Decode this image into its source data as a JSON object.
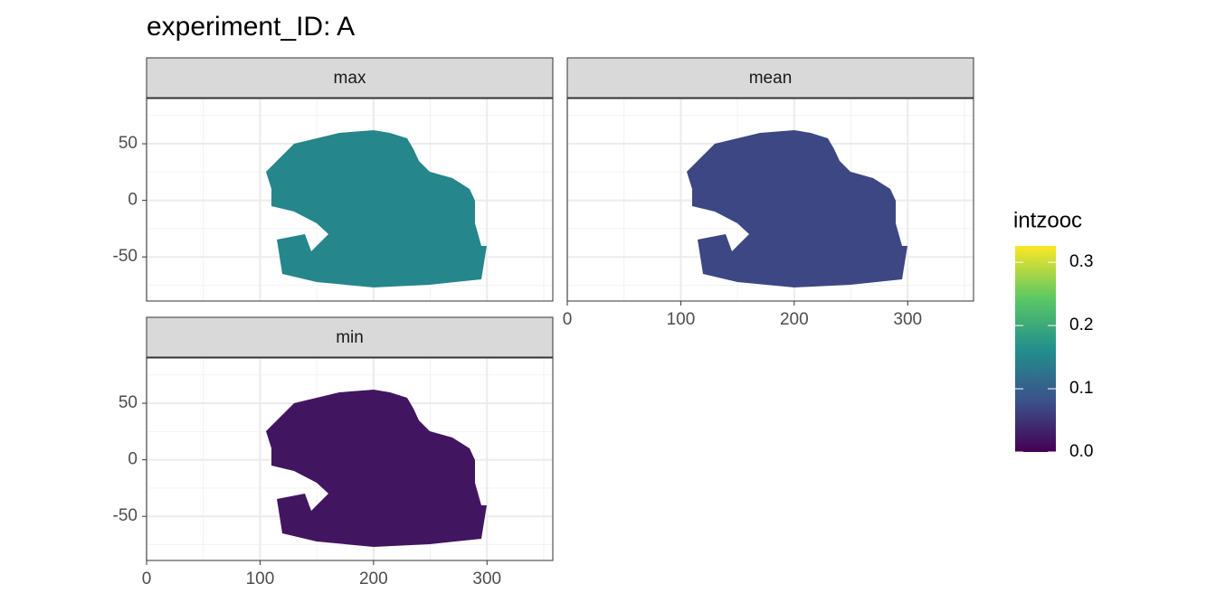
{
  "chart_data": {
    "type": "raster",
    "title": "experiment_ID: A",
    "facets": [
      {
        "name": "max",
        "fill_value": 0.15
      },
      {
        "name": "mean",
        "fill_value": 0.07
      },
      {
        "name": "min",
        "fill_value": 0.02
      }
    ],
    "xlim": [
      0,
      358
    ],
    "xticks": [
      0,
      100,
      200,
      300
    ],
    "ylim": [
      -89,
      90
    ],
    "yticks": [
      -50,
      0,
      50
    ],
    "grid": true,
    "legend": {
      "title": "intzooc",
      "lim": [
        0,
        0.326
      ],
      "ticks": [
        {
          "value": 0,
          "label": "0.0"
        },
        0.1,
        0.2,
        0.3
      ],
      "colors": [
        "#440154",
        "#3b528b",
        "#21908c",
        "#5dc963",
        "#fde725"
      ]
    }
  }
}
